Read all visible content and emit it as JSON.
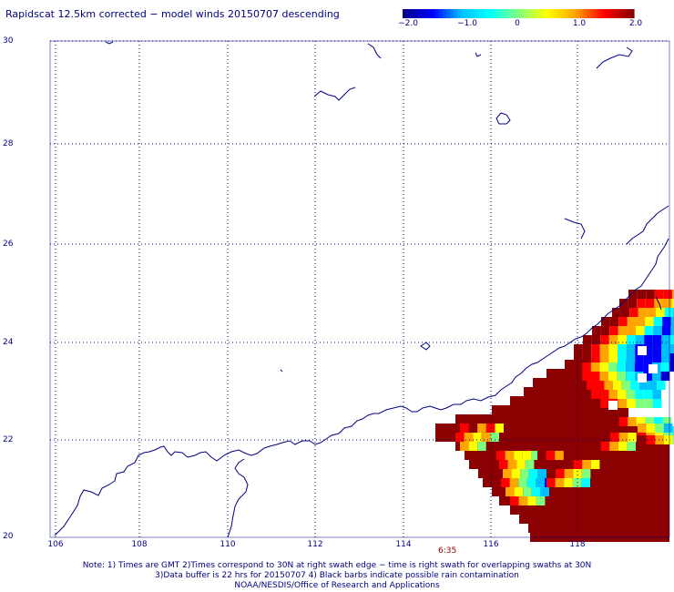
{
  "title": "Rapidscat 12.5km corrected − model winds 20150707 descending",
  "colorbar": {
    "labels": [
      "−2.0",
      "−1.0",
      "0",
      "1.0",
      "2.0"
    ],
    "range": [
      -2,
      2
    ],
    "colors": [
      "#00008b",
      "#0000ff",
      "#00bfff",
      "#00ffff",
      "#7fff7f",
      "#ffff00",
      "#ffa500",
      "#ff0000",
      "#8b0000"
    ]
  },
  "map": {
    "lon_range": [
      105.5,
      119.8
    ],
    "lat_range": [
      20,
      30
    ],
    "x_ticks": [
      "106",
      "108",
      "110",
      "112",
      "114",
      "116",
      "118"
    ],
    "y_ticks": [
      "30",
      "28",
      "26",
      "24",
      "22",
      "20"
    ],
    "gridlines": true,
    "coast_color": "#000080",
    "swath_time": "6:35"
  },
  "notes": [
    "Note: 1) Times are GMT 2)Times correspond to 30N at right swath edge − time is right swath for overlapping swaths at 30N",
    "3)Data buffer is 22 hrs for 20150707 4) Black barbs indicate possible rain contamination",
    "NOAA/NESDIS/Office of Research and Applications"
  ]
}
